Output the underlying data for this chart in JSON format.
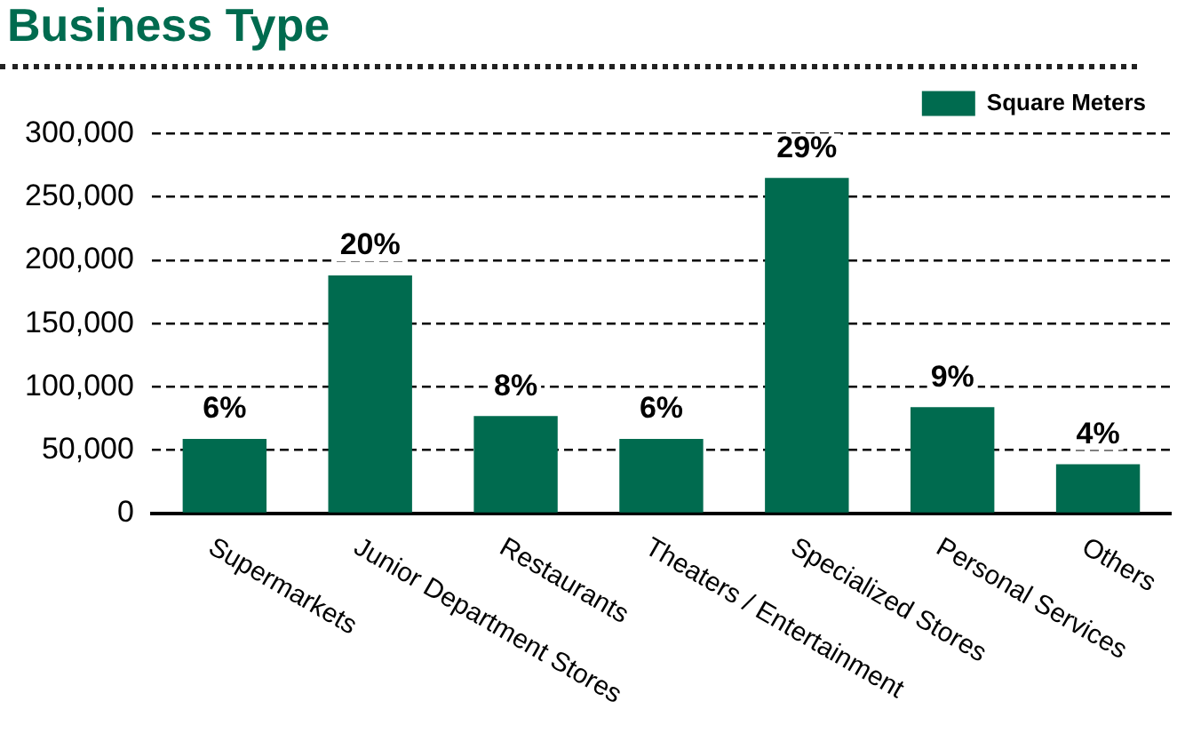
{
  "chart_data": {
    "type": "bar",
    "title": "Business Type",
    "categories": [
      "Supermarkets",
      "Junior Department Stores",
      "Restaurants",
      "Theaters / Entertainment",
      "Specialized Stores",
      "Personal Services",
      "Others"
    ],
    "series": [
      {
        "name": "Square Meters",
        "color": "#006b4f",
        "values": [
          59000,
          188000,
          77000,
          59000,
          265000,
          84000,
          39000
        ]
      }
    ],
    "annotations": [
      {
        "text": "6%",
        "x": "Supermarkets",
        "y": 59000
      },
      {
        "text": "20%",
        "x": "Junior Department Stores",
        "y": 188000
      },
      {
        "text": "8%",
        "x": "Restaurants",
        "y": 77000
      },
      {
        "text": "6%",
        "x": "Theaters / Entertainment",
        "y": 59000
      },
      {
        "text": "29%",
        "x": "Specialized Stores",
        "y": 265000
      },
      {
        "text": "9%",
        "x": "Personal Services",
        "y": 84000
      },
      {
        "text": "4%",
        "x": "Others",
        "y": 39000
      }
    ],
    "ylim": [
      0,
      300000
    ],
    "yticks": [
      0,
      {
        "value": 50000,
        "label": "50,000"
      },
      {
        "value": 100000,
        "label": "100,000"
      },
      {
        "value": 150000,
        "label": "150,000"
      },
      {
        "value": 200000,
        "label": "200,000"
      },
      {
        "value": 250000,
        "label": "250,000"
      },
      {
        "value": 300000,
        "label": "300,000"
      }
    ],
    "grid": "y",
    "legend": "top right"
  }
}
